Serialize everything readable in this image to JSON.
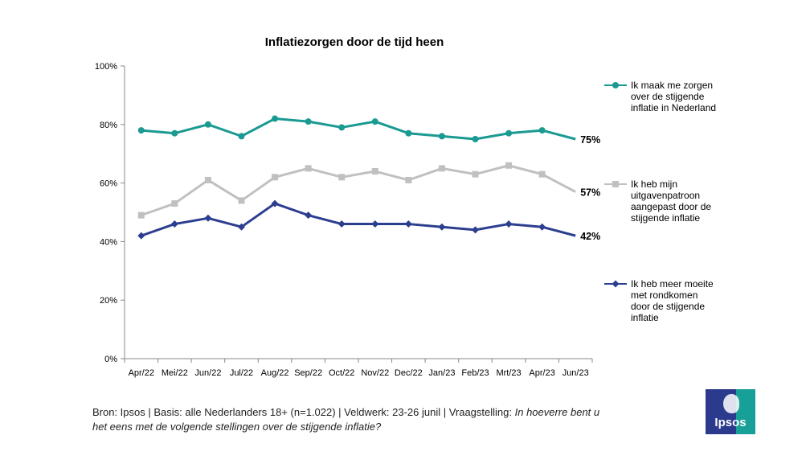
{
  "chart_data": {
    "type": "line",
    "title": "Inflatiezorgen door de tijd heen",
    "categories": [
      "Apr/22",
      "Mei/22",
      "Jun/22",
      "Jul/22",
      "Aug/22",
      "Sep/22",
      "Oct/22",
      "Nov/22",
      "Dec/22",
      "Jan/23",
      "Feb/23",
      "Mrt/23",
      "Apr/23",
      "Jun/23"
    ],
    "ylim": [
      0,
      100
    ],
    "yticks": [
      0,
      20,
      40,
      60,
      80,
      100
    ],
    "ytick_labels": [
      "0%",
      "20%",
      "40%",
      "60%",
      "80%",
      "100%"
    ],
    "xlabel": "",
    "ylabel": "",
    "grid": false,
    "legend_position": "right",
    "series": [
      {
        "name": "Ik maak me zorgen over de stijgende inflatie in Nederland",
        "legend_lines": [
          "Ik maak me zorgen",
          "over de stijgende",
          "inflatie in Nederland"
        ],
        "color": "#1a9a92",
        "marker": "circle",
        "values": [
          78,
          77,
          80,
          76,
          82,
          81,
          79,
          81,
          77,
          76,
          75,
          77,
          78,
          75
        ],
        "end_label": "75%"
      },
      {
        "name": "Ik heb mijn uitgavenpatroon aangepast door de stijgende inflatie",
        "legend_lines": [
          "Ik heb mijn",
          "uitgavenpatroon",
          "aangepast door de",
          "stijgende inflatie"
        ],
        "color": "#c0c0c0",
        "marker": "square",
        "values": [
          49,
          53,
          61,
          54,
          62,
          65,
          62,
          64,
          61,
          65,
          63,
          66,
          63,
          57
        ],
        "end_label": "57%"
      },
      {
        "name": "Ik heb meer moeite met rondkomen door de stijgende inflatie",
        "legend_lines": [
          "Ik heb meer moeite",
          "met rondkomen",
          "door de stijgende",
          "inflatie"
        ],
        "color": "#2c3e8f",
        "marker": "diamond",
        "values": [
          42,
          46,
          48,
          45,
          53,
          49,
          46,
          46,
          46,
          45,
          44,
          46,
          45,
          42
        ],
        "end_label": "42%"
      }
    ]
  },
  "footer": {
    "source_prefix": "Bron: Ipsos | Basis: alle Nederlanders 18+ (n=1.022) | Veldwerk: 23-26 junil | Vraagstelling: ",
    "question": "In hoeverre bent u het eens met de volgende stellingen over de stijgende inflatie?"
  },
  "logo": {
    "text": "Ipsos"
  }
}
